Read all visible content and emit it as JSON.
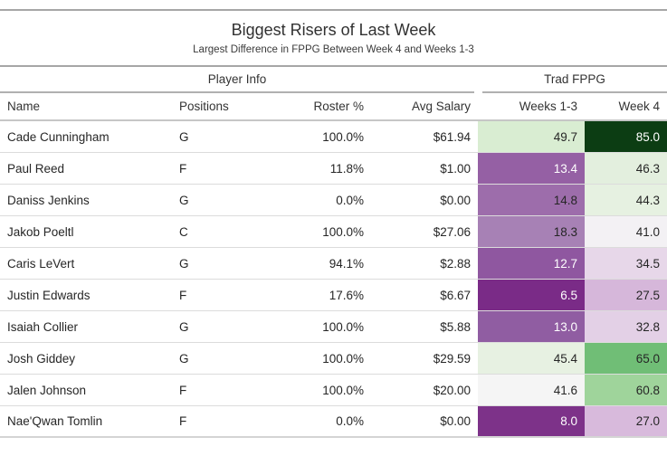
{
  "header": {
    "title": "Biggest Risers of Last Week",
    "subtitle": "Largest Difference in FPPG Between Week 4 and Weeks 1-3"
  },
  "table": {
    "spanners": {
      "player_info": "Player Info",
      "trad_fppg": "Trad FPPG"
    },
    "columns": {
      "name": "Name",
      "positions": "Positions",
      "roster": "Roster %",
      "salary": "Avg Salary",
      "weeks13": "Weeks 1-3",
      "week4": "Week 4"
    },
    "rows": [
      {
        "name": "Cade Cunningham",
        "positions": "G",
        "roster": "100.0%",
        "salary": "$61.94",
        "weeks13": {
          "value": "49.7",
          "bg": "#d9edd2",
          "fg": "#262626"
        },
        "week4": {
          "value": "85.0",
          "bg": "#0c3d13",
          "fg": "#ffffff"
        }
      },
      {
        "name": "Paul Reed",
        "positions": "F",
        "roster": "11.8%",
        "salary": "$1.00",
        "weeks13": {
          "value": "13.4",
          "bg": "#9560a4",
          "fg": "#ffffff"
        },
        "week4": {
          "value": "46.3",
          "bg": "#e3efde",
          "fg": "#262626"
        }
      },
      {
        "name": "Daniss Jenkins",
        "positions": "G",
        "roster": "0.0%",
        "salary": "$0.00",
        "weeks13": {
          "value": "14.8",
          "bg": "#9d6dab",
          "fg": "#262626"
        },
        "week4": {
          "value": "44.3",
          "bg": "#e6f1e1",
          "fg": "#262626"
        }
      },
      {
        "name": "Jakob Poeltl",
        "positions": "C",
        "roster": "100.0%",
        "salary": "$27.06",
        "weeks13": {
          "value": "18.3",
          "bg": "#a781b5",
          "fg": "#262626"
        },
        "week4": {
          "value": "41.0",
          "bg": "#f3f1f4",
          "fg": "#262626"
        }
      },
      {
        "name": "Caris LeVert",
        "positions": "G",
        "roster": "94.1%",
        "salary": "$2.88",
        "weeks13": {
          "value": "12.7",
          "bg": "#8f57a0",
          "fg": "#ffffff"
        },
        "week4": {
          "value": "34.5",
          "bg": "#e7d7e9",
          "fg": "#262626"
        }
      },
      {
        "name": "Justin Edwards",
        "positions": "F",
        "roster": "17.6%",
        "salary": "$6.67",
        "weeks13": {
          "value": "6.5",
          "bg": "#7a2b87",
          "fg": "#ffffff"
        },
        "week4": {
          "value": "27.5",
          "bg": "#d6b7da",
          "fg": "#262626"
        }
      },
      {
        "name": "Isaiah Collier",
        "positions": "G",
        "roster": "100.0%",
        "salary": "$5.88",
        "weeks13": {
          "value": "13.0",
          "bg": "#905da2",
          "fg": "#ffffff"
        },
        "week4": {
          "value": "32.8",
          "bg": "#e3d0e6",
          "fg": "#262626"
        }
      },
      {
        "name": "Josh Giddey",
        "positions": "G",
        "roster": "100.0%",
        "salary": "$29.59",
        "weeks13": {
          "value": "45.4",
          "bg": "#e7f1e2",
          "fg": "#262626"
        },
        "week4": {
          "value": "65.0",
          "bg": "#70be76",
          "fg": "#262626"
        }
      },
      {
        "name": "Jalen Johnson",
        "positions": "F",
        "roster": "100.0%",
        "salary": "$20.00",
        "weeks13": {
          "value": "41.6",
          "bg": "#f5f5f5",
          "fg": "#262626"
        },
        "week4": {
          "value": "60.8",
          "bg": "#9fd49b",
          "fg": "#262626"
        }
      },
      {
        "name": "Nae'Qwan Tomlin",
        "positions": "F",
        "roster": "0.0%",
        "salary": "$0.00",
        "weeks13": {
          "value": "8.0",
          "bg": "#7d3289",
          "fg": "#ffffff"
        },
        "week4": {
          "value": "27.0",
          "bg": "#d8badc",
          "fg": "#262626"
        }
      }
    ]
  },
  "chart_data": {
    "type": "table",
    "title": "Biggest Risers of Last Week",
    "subtitle": "Largest Difference in FPPG Between Week 4 and Weeks 1-3",
    "column_groups": [
      {
        "label": "Player Info",
        "columns": [
          "Name",
          "Positions",
          "Roster %",
          "Avg Salary"
        ]
      },
      {
        "label": "Trad FPPG",
        "columns": [
          "Weeks 1-3",
          "Week 4"
        ]
      }
    ],
    "columns": [
      "Name",
      "Positions",
      "Roster %",
      "Avg Salary",
      "Weeks 1-3",
      "Week 4"
    ],
    "rows": [
      [
        "Cade Cunningham",
        "G",
        "100.0%",
        "$61.94",
        49.7,
        85.0
      ],
      [
        "Paul Reed",
        "F",
        "11.8%",
        "$1.00",
        13.4,
        46.3
      ],
      [
        "Daniss Jenkins",
        "G",
        "0.0%",
        "$0.00",
        14.8,
        44.3
      ],
      [
        "Jakob Poeltl",
        "C",
        "100.0%",
        "$27.06",
        18.3,
        41.0
      ],
      [
        "Caris LeVert",
        "G",
        "94.1%",
        "$2.88",
        12.7,
        34.5
      ],
      [
        "Justin Edwards",
        "F",
        "17.6%",
        "$6.67",
        6.5,
        27.5
      ],
      [
        "Isaiah Collier",
        "G",
        "100.0%",
        "$5.88",
        13.0,
        32.8
      ],
      [
        "Josh Giddey",
        "G",
        "100.0%",
        "$29.59",
        45.4,
        65.0
      ],
      [
        "Jalen Johnson",
        "F",
        "100.0%",
        "$20.00",
        41.6,
        60.8
      ],
      [
        "Nae'Qwan Tomlin",
        "F",
        "0.0%",
        "$0.00",
        8.0,
        27.0
      ]
    ],
    "heatmap_note": "Weeks 1-3 and Week 4 cells shaded on a purple-to-green diverging scale (low FPPG = dark purple, high FPPG = dark green)",
    "heatmap_colors": {
      "low": "#7a2b87",
      "mid": "#f5f5f5",
      "high": "#0c3d13"
    }
  }
}
